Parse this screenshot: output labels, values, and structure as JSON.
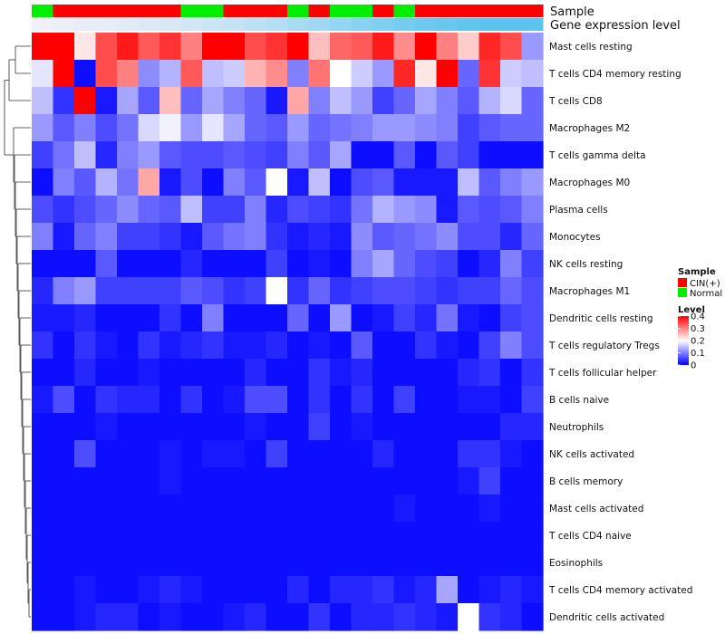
{
  "chart_data": {
    "type": "heatmap",
    "title": "",
    "annotation_rows": [
      {
        "name": "Sample",
        "values": [
          "Normal",
          "CIN(+)",
          "CIN(+)",
          "CIN(+)",
          "CIN(+)",
          "CIN(+)",
          "CIN(+)",
          "Normal",
          "Normal",
          "CIN(+)",
          "CIN(+)",
          "CIN(+)",
          "Normal",
          "CIN(+)",
          "Normal",
          "Normal",
          "CIN(+)",
          "Normal",
          "CIN(+)",
          "CIN(+)",
          "CIN(+)",
          "CIN(+)",
          "CIN(+)",
          "CIN(+)"
        ]
      },
      {
        "name": "Gene expression level",
        "values": [
          0.0,
          0.02,
          0.05,
          0.07,
          0.1,
          0.13,
          0.16,
          0.2,
          0.25,
          0.3,
          0.35,
          0.4,
          0.48,
          0.55,
          0.62,
          0.7,
          0.76,
          0.82,
          0.88,
          0.92,
          0.96,
          1.0,
          1.0,
          1.0
        ]
      }
    ],
    "rows": [
      "Mast cells resting",
      "T cells CD4 memory resting",
      "T cells CD8",
      "Macrophages M2",
      "T cells gamma delta",
      "Macrophages M0",
      "Plasma cells",
      "Monocytes",
      "NK cells resting",
      "Macrophages M1",
      "Dendritic cells resting",
      "T cells regulatory  Tregs",
      "T cells follicular helper",
      "B cells naive",
      "Neutrophils",
      "NK cells activated",
      "B cells memory",
      "Mast cells activated",
      "T cells CD4 naive",
      "Eosinophils",
      "T cells CD4 memory activated",
      "Dendritic cells activated"
    ],
    "values": [
      [
        0.4,
        0.4,
        0.22,
        0.34,
        0.38,
        0.33,
        0.36,
        0.3,
        0.4,
        0.4,
        0.34,
        0.36,
        0.4,
        0.25,
        0.32,
        0.33,
        0.38,
        0.29,
        0.4,
        0.3,
        0.24,
        0.37,
        0.34,
        0.12
      ],
      [
        0.18,
        0.4,
        0.01,
        0.34,
        0.3,
        0.11,
        0.14,
        0.33,
        0.15,
        0.16,
        0.26,
        0.29,
        0.1,
        0.31,
        0.2,
        0.16,
        0.12,
        0.37,
        0.22,
        0.4,
        0.08,
        0.36,
        0.16,
        0.15
      ],
      [
        0.15,
        0.04,
        0.4,
        0.02,
        0.13,
        0.07,
        0.25,
        0.08,
        0.13,
        0.1,
        0.08,
        0.02,
        0.27,
        0.1,
        0.15,
        0.12,
        0.05,
        0.08,
        0.13,
        0.1,
        0.07,
        0.14,
        0.17,
        0.08
      ],
      [
        0.12,
        0.07,
        0.1,
        0.06,
        0.09,
        0.17,
        0.19,
        0.12,
        0.18,
        0.13,
        0.08,
        0.07,
        0.12,
        0.08,
        0.09,
        0.1,
        0.12,
        0.12,
        0.11,
        0.1,
        0.05,
        0.07,
        0.08,
        0.08
      ],
      [
        0.05,
        0.09,
        0.15,
        0.03,
        0.1,
        0.12,
        0.07,
        0.06,
        0.06,
        0.07,
        0.06,
        0.05,
        0.1,
        0.07,
        0.13,
        0.01,
        0.01,
        0.07,
        0.01,
        0.07,
        0.05,
        0.01,
        0.01,
        0.01
      ],
      [
        0.01,
        0.1,
        0.07,
        0.14,
        0.09,
        0.27,
        0.02,
        0.06,
        0.01,
        0.1,
        0.07,
        0.2,
        0.02,
        0.15,
        0.01,
        0.06,
        0.07,
        0.02,
        0.02,
        0.02,
        0.15,
        0.07,
        0.1,
        0.12
      ],
      [
        0.06,
        0.04,
        0.06,
        0.08,
        0.11,
        0.08,
        0.07,
        0.15,
        0.05,
        0.05,
        0.1,
        0.03,
        0.06,
        0.05,
        0.04,
        0.09,
        0.14,
        0.12,
        0.11,
        0.02,
        0.07,
        0.06,
        0.07,
        0.1
      ],
      [
        0.1,
        0.02,
        0.08,
        0.1,
        0.05,
        0.05,
        0.04,
        0.02,
        0.07,
        0.09,
        0.1,
        0.04,
        0.02,
        0.03,
        0.02,
        0.11,
        0.07,
        0.08,
        0.09,
        0.11,
        0.06,
        0.06,
        0.03,
        0.08
      ],
      [
        0.01,
        0.01,
        0.01,
        0.07,
        0.01,
        0.01,
        0.01,
        0.03,
        0.01,
        0.01,
        0.01,
        0.05,
        0.01,
        0.02,
        0.01,
        0.1,
        0.13,
        0.08,
        0.06,
        0.05,
        0.01,
        0.03,
        0.1,
        0.05
      ],
      [
        0.03,
        0.1,
        0.12,
        0.05,
        0.05,
        0.05,
        0.05,
        0.07,
        0.06,
        0.04,
        0.05,
        0.2,
        0.04,
        0.08,
        0.04,
        0.05,
        0.06,
        0.06,
        0.05,
        0.04,
        0.05,
        0.05,
        0.08,
        0.06
      ],
      [
        0.02,
        0.02,
        0.03,
        0.01,
        0.01,
        0.01,
        0.04,
        0.01,
        0.1,
        0.01,
        0.01,
        0.01,
        0.08,
        0.01,
        0.12,
        0.01,
        0.02,
        0.05,
        0.03,
        0.09,
        0.02,
        0.01,
        0.05,
        0.06
      ],
      [
        0.04,
        0.01,
        0.04,
        0.02,
        0.01,
        0.04,
        0.02,
        0.03,
        0.04,
        0.02,
        0.02,
        0.03,
        0.01,
        0.02,
        0.01,
        0.07,
        0.01,
        0.01,
        0.04,
        0.02,
        0.01,
        0.05,
        0.1,
        0.06
      ],
      [
        0.01,
        0.01,
        0.03,
        0.01,
        0.01,
        0.02,
        0.01,
        0.01,
        0.01,
        0.01,
        0.03,
        0.01,
        0.01,
        0.04,
        0.02,
        0.03,
        0.01,
        0.01,
        0.01,
        0.01,
        0.03,
        0.04,
        0.01,
        0.04
      ],
      [
        0.02,
        0.06,
        0.01,
        0.04,
        0.03,
        0.03,
        0.01,
        0.04,
        0.01,
        0.02,
        0.06,
        0.06,
        0.01,
        0.04,
        0.01,
        0.04,
        0.01,
        0.05,
        0.01,
        0.01,
        0.02,
        0.02,
        0.01,
        0.05
      ],
      [
        0.01,
        0.01,
        0.01,
        0.02,
        0.01,
        0.01,
        0.01,
        0.01,
        0.01,
        0.01,
        0.02,
        0.01,
        0.01,
        0.05,
        0.01,
        0.02,
        0.01,
        0.01,
        0.01,
        0.01,
        0.01,
        0.01,
        0.03,
        0.03
      ],
      [
        0.01,
        0.01,
        0.06,
        0.01,
        0.01,
        0.01,
        0.02,
        0.01,
        0.02,
        0.02,
        0.01,
        0.05,
        0.01,
        0.01,
        0.01,
        0.01,
        0.03,
        0.01,
        0.01,
        0.01,
        0.04,
        0.04,
        0.02,
        0.01
      ],
      [
        0.01,
        0.01,
        0.01,
        0.01,
        0.01,
        0.01,
        0.02,
        0.01,
        0.01,
        0.01,
        0.01,
        0.01,
        0.01,
        0.01,
        0.01,
        0.01,
        0.01,
        0.01,
        0.01,
        0.01,
        0.02,
        0.05,
        0.01,
        0.01
      ],
      [
        0.01,
        0.01,
        0.01,
        0.01,
        0.01,
        0.01,
        0.01,
        0.01,
        0.01,
        0.01,
        0.01,
        0.01,
        0.01,
        0.01,
        0.01,
        0.01,
        0.01,
        0.02,
        0.01,
        0.01,
        0.01,
        0.02,
        0.01,
        0.01
      ],
      [
        0.01,
        0.01,
        0.01,
        0.01,
        0.01,
        0.01,
        0.01,
        0.01,
        0.01,
        0.01,
        0.01,
        0.01,
        0.01,
        0.01,
        0.01,
        0.01,
        0.01,
        0.01,
        0.01,
        0.01,
        0.01,
        0.01,
        0.01,
        0.01
      ],
      [
        0.01,
        0.01,
        0.01,
        0.01,
        0.01,
        0.01,
        0.01,
        0.01,
        0.01,
        0.01,
        0.01,
        0.01,
        0.01,
        0.01,
        0.01,
        0.01,
        0.01,
        0.01,
        0.01,
        0.01,
        0.01,
        0.01,
        0.01,
        0.01
      ],
      [
        0.01,
        0.01,
        0.02,
        0.01,
        0.01,
        0.02,
        0.03,
        0.02,
        0.01,
        0.01,
        0.01,
        0.01,
        0.03,
        0.01,
        0.03,
        0.03,
        0.04,
        0.02,
        0.03,
        0.13,
        0.01,
        0.02,
        0.03,
        0.02
      ],
      [
        0.01,
        0.01,
        0.02,
        0.03,
        0.03,
        0.01,
        0.02,
        0.01,
        0.01,
        0.02,
        0.03,
        0.01,
        0.01,
        0.04,
        0.01,
        0.03,
        0.03,
        0.04,
        0.03,
        0.02,
        0.2,
        0.04,
        0.03,
        0.01
      ]
    ],
    "color_scale": {
      "low": "#0000FF",
      "mid": "#FFFFFF",
      "high": "#FF0000",
      "min": 0,
      "mid_value": 0.2,
      "max": 0.4
    },
    "legend": {
      "sample_title": "Sample",
      "sample_entries": [
        {
          "label": "CIN(+)",
          "color": "#FF0000"
        },
        {
          "label": "Normal",
          "color": "#00EE00"
        }
      ],
      "level_title": "Level",
      "level_ticks": [
        "0.4",
        "0.3",
        "0.2",
        "0.1",
        "0"
      ],
      "level_tick_values": [
        0.4,
        0.3,
        0.2,
        0.1,
        0
      ]
    },
    "annotation_colors": {
      "CIN(+)": "#FF0000",
      "Normal": "#00EE00",
      "expr_low": "#F0F0F6",
      "expr_high": "#5BC4EE"
    }
  }
}
